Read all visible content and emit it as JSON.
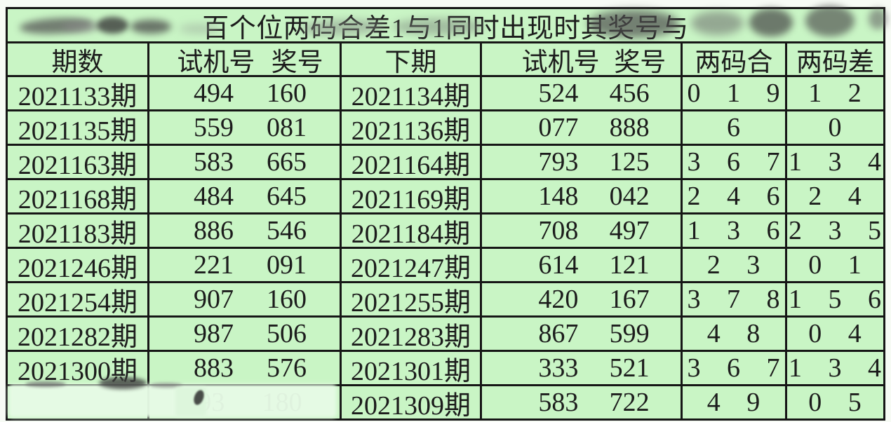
{
  "title": "百个位两码合差1与1同时出现时其奖号与",
  "colors": {
    "table_bg": "#c9f5c5",
    "border": "#161616",
    "text": "#1c1c1c",
    "page_bg": "#f7fbf5"
  },
  "table": {
    "headers": {
      "period": "期数",
      "test": "试机号",
      "prize": "奖号",
      "next": "下期",
      "next_test": "试机号",
      "next_prize": "奖号",
      "sum": "两码合",
      "diff": "两码差"
    },
    "rows": [
      {
        "period": "2021133期",
        "test": "494",
        "prize": "160",
        "next": "2021134期",
        "next_test": "524",
        "next_prize": "456",
        "sum": "0 1 9",
        "diff": "1 2"
      },
      {
        "period": "2021135期",
        "test": "559",
        "prize": "081",
        "next": "2021136期",
        "next_test": "077",
        "next_prize": "888",
        "sum": "6",
        "diff": "0"
      },
      {
        "period": "2021163期",
        "test": "583",
        "prize": "665",
        "next": "2021164期",
        "next_test": "793",
        "next_prize": "125",
        "sum": "3 6 7",
        "diff": "1 3 4"
      },
      {
        "period": "2021168期",
        "test": "484",
        "prize": "645",
        "next": "2021169期",
        "next_test": "148",
        "next_prize": "042",
        "sum": "2 4 6",
        "diff": "2 4"
      },
      {
        "period": "2021183期",
        "test": "886",
        "prize": "546",
        "next": "2021184期",
        "next_test": "708",
        "next_prize": "497",
        "sum": "1 3 6",
        "diff": "2 3 5"
      },
      {
        "period": "2021246期",
        "test": "221",
        "prize": "091",
        "next": "2021247期",
        "next_test": "614",
        "next_prize": "121",
        "sum": "2 3",
        "diff": "0 1"
      },
      {
        "period": "2021254期",
        "test": "907",
        "prize": "160",
        "next": "2021255期",
        "next_test": "420",
        "next_prize": "167",
        "sum": "3 7 8",
        "diff": "1 5 6"
      },
      {
        "period": "2021282期",
        "test": "987",
        "prize": "506",
        "next": "2021283期",
        "next_test": "867",
        "next_prize": "599",
        "sum": "4 8",
        "diff": "0 4"
      },
      {
        "period": "2021300期",
        "test": "883",
        "prize": "576",
        "next": "2021301期",
        "next_test": "333",
        "next_prize": "521",
        "sum": "3 6 7",
        "diff": "1 3 4"
      },
      {
        "period": "",
        "test": "93",
        "prize": "180",
        "next": "2021309期",
        "next_test": "583",
        "next_prize": "722",
        "sum": "4 9",
        "diff": "0 5"
      }
    ]
  }
}
